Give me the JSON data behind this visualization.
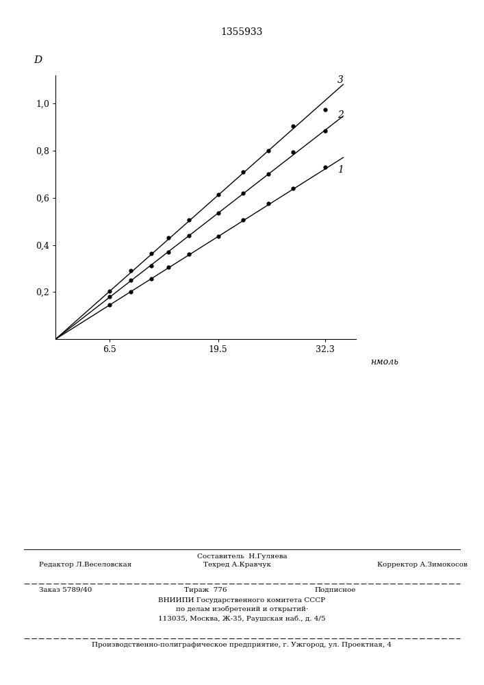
{
  "title": "1355933",
  "ylabel": "D",
  "xlabel": "нмоль",
  "xlim": [
    0,
    36
  ],
  "ylim": [
    0,
    1.12
  ],
  "xticks": [
    6.5,
    19.5,
    32.3
  ],
  "yticks": [
    0.2,
    0.4,
    0.6,
    0.8,
    1.0
  ],
  "slope1": 0.02235,
  "slope2": 0.02745,
  "slope3": 0.03135,
  "dots1": {
    "x": [
      6.5,
      9.0,
      11.5,
      13.5,
      16.0,
      19.5,
      22.5,
      25.5,
      28.5,
      32.3
    ],
    "y": [
      0.145,
      0.2,
      0.255,
      0.305,
      0.36,
      0.435,
      0.505,
      0.575,
      0.64,
      0.73
    ]
  },
  "dots2": {
    "x": [
      6.5,
      9.0,
      11.5,
      13.5,
      16.0,
      19.5,
      22.5,
      25.5,
      28.5,
      32.3
    ],
    "y": [
      0.18,
      0.25,
      0.31,
      0.37,
      0.44,
      0.535,
      0.62,
      0.7,
      0.795,
      0.885
    ]
  },
  "dots3": {
    "x": [
      6.5,
      9.0,
      11.5,
      13.5,
      16.0,
      19.5,
      22.5,
      25.5,
      28.5,
      32.3
    ],
    "y": [
      0.205,
      0.29,
      0.365,
      0.43,
      0.505,
      0.615,
      0.71,
      0.8,
      0.905,
      0.975
    ]
  },
  "footer_sestavitel": "Составитель  Н.Гуляева",
  "footer_editor": "Редактор Л.Веселовская",
  "footer_tekhred": "Техред А.Кравчук",
  "footer_korrektor": "Корректор А.Зимокосов",
  "footer_zakaz": "Заказ 5789/40",
  "footer_tirazh": "Тираж  776",
  "footer_podpisnoe": "Подписное",
  "footer_vniiipi1": "ВНИИПИ Государственного комитета СССР",
  "footer_vniiipi2": "по делам изобретений и открытий·",
  "footer_vniiipi3": "113035, Москва, Ж-35, Раушская наб., д. 4/5",
  "footer_predpriyatie": "Производственно-полиграфическое предприятие, г. Ужгород, ул. Проектная, 4",
  "bg_color": "#ffffff",
  "line_color": "#000000",
  "dot_color": "#000000"
}
